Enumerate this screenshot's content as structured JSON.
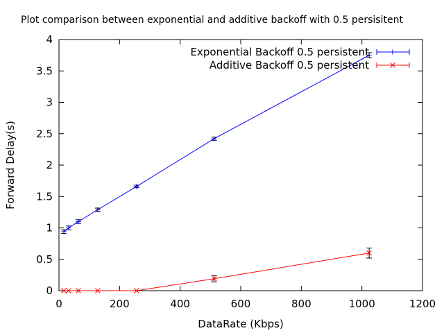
{
  "chart_data": {
    "type": "line",
    "title": "Plot comparison between exponential and additive backoff with 0.5 persisitent",
    "xlabel": "DataRate (Kbps)",
    "ylabel": "Forward Delay(s)",
    "xlim": [
      0,
      1200
    ],
    "ylim": [
      0,
      4
    ],
    "xticks": [
      0,
      200,
      400,
      600,
      800,
      1000,
      1200
    ],
    "yticks": [
      0,
      0.5,
      1,
      1.5,
      2,
      2.5,
      3,
      3.5,
      4
    ],
    "xtick_labels": [
      "0",
      "200",
      "400",
      "600",
      "800",
      "1000",
      "1200"
    ],
    "ytick_labels": [
      "0",
      "0.5",
      "1",
      "1.5",
      "2",
      "2.5",
      "3",
      "3.5",
      "4"
    ],
    "grid": false,
    "legend_position": "top-right",
    "series": [
      {
        "name": "Exponential Backoff 0.5 persistent",
        "color": "#0000ff",
        "marker": "plus",
        "x": [
          16,
          32,
          64,
          128,
          256,
          512,
          1024
        ],
        "y": [
          0.94,
          1.0,
          1.1,
          1.29,
          1.66,
          2.42,
          3.75
        ],
        "err": [
          0.03,
          0.03,
          0.03,
          0.025,
          0.02,
          0.025,
          0.04
        ]
      },
      {
        "name": "Additive Backoff 0.5 persistent",
        "color": "#ff0000",
        "marker": "cross",
        "x": [
          16,
          32,
          64,
          128,
          256,
          512,
          1024
        ],
        "y": [
          0.0,
          0.0,
          0.0,
          0.0,
          0.0,
          0.19,
          0.6
        ],
        "err": [
          0.0,
          0.0,
          0.0,
          0.0,
          0.0,
          0.05,
          0.08
        ]
      }
    ]
  }
}
